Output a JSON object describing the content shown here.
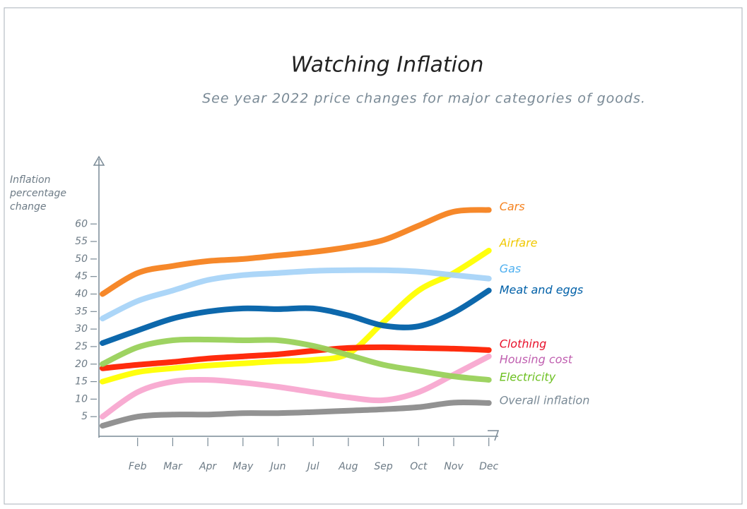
{
  "chart_data": {
    "type": "line",
    "title": "Watching Inflation",
    "subtitle": "See year 2022 price changes for major categories of goods.",
    "y_label": "Inflation percentage change",
    "categories": [
      null,
      "Feb",
      "Mar",
      "Apr",
      "May",
      "Jun",
      "Jul",
      "Aug",
      "Sep",
      "Oct",
      "Nov",
      "Dec"
    ],
    "ylim": [
      0,
      80
    ],
    "yticks": [
      5,
      10,
      15,
      20,
      25,
      30,
      35,
      40,
      45,
      50,
      55,
      60
    ],
    "series": [
      {
        "name": "Cars",
        "color": "#f5821f",
        "values": [
          40,
          46,
          48,
          49.4,
          50,
          51,
          52,
          53.4,
          55.4,
          59.5,
          63.5,
          64
        ]
      },
      {
        "name": "Airfare",
        "color": "#ffff00",
        "values": [
          15,
          17.7,
          18.8,
          19.6,
          20.2,
          20.8,
          21.2,
          23,
          32,
          41,
          46,
          52.4
        ]
      },
      {
        "name": "Gas",
        "color": "#a8d4f8",
        "values": [
          33,
          38,
          41,
          44,
          45.4,
          46,
          46.6,
          46.8,
          46.8,
          46.4,
          45.4,
          44.4
        ]
      },
      {
        "name": "Meat and eggs",
        "color": "#0060a8",
        "values": [
          26,
          29.6,
          33,
          35,
          35.9,
          35.7,
          35.9,
          33.9,
          31,
          30.8,
          34.7,
          41
        ]
      },
      {
        "name": "Clothing",
        "color": "#ff2000",
        "values": [
          18.8,
          19.8,
          20.6,
          21.6,
          22.2,
          22.8,
          23.8,
          24.6,
          24.8,
          24.6,
          24.4,
          24
        ]
      },
      {
        "name": "Housing cost",
        "color": "#f8a8d0",
        "values": [
          5,
          12,
          15,
          15.5,
          14.7,
          13.5,
          12,
          10.5,
          9.7,
          12,
          17,
          22.2
        ]
      },
      {
        "name": "Electricity",
        "color": "#99d15a",
        "values": [
          20,
          24.8,
          26.8,
          27,
          26.8,
          26.8,
          25.2,
          22.6,
          19.8,
          18.1,
          16.5,
          15.5
        ]
      },
      {
        "name": "Overall inflation",
        "color": "#8c8c8c",
        "values": [
          2.4,
          5,
          5.6,
          5.6,
          6,
          6,
          6.3,
          6.7,
          7.1,
          7.7,
          9,
          8.9
        ]
      }
    ]
  }
}
